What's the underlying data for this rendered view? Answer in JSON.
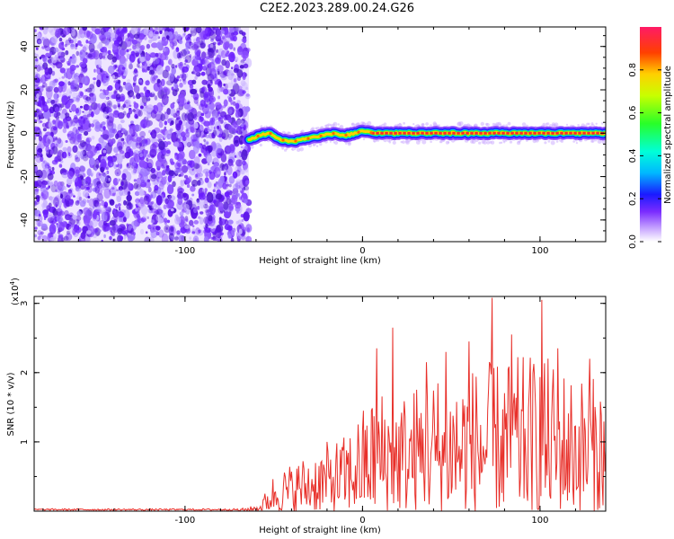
{
  "title": "C2E2.2023.289.00.24.G26",
  "chart_data": [
    {
      "type": "heatmap",
      "xlabel": "Height of straight line (km)",
      "ylabel": "Frequency (Hz)",
      "xlim": [
        -185,
        137
      ],
      "ylim": [
        -50,
        49
      ],
      "xticks": [
        -100,
        0,
        100
      ],
      "yticks": [
        -40,
        -20,
        0,
        20,
        40
      ],
      "noise_region_x": [
        -185,
        -64
      ],
      "signal_track": {
        "x": [
          -64,
          -58,
          -52,
          -46,
          -40,
          -34,
          -28,
          -22,
          -16,
          -10,
          -4,
          0,
          6,
          12,
          20,
          40,
          60,
          80,
          100,
          120,
          137
        ],
        "y": [
          -3,
          -1,
          0,
          -3,
          -4,
          -3,
          -2,
          -1,
          0,
          -1,
          0,
          1,
          0,
          0,
          0,
          0,
          0,
          0,
          0,
          0,
          0
        ]
      },
      "colorbar": {
        "label": "Normalized spectral amplitude",
        "ticks": [
          0.0,
          0.2,
          0.4,
          0.6,
          0.8
        ],
        "range": [
          0,
          1
        ]
      }
    },
    {
      "type": "line",
      "xlabel": "Height of straight line (km)",
      "ylabel": "SNR (10 * v/v)",
      "yscale_label": "(x10",
      "yscale_exp": "4",
      "yscale_close": ")",
      "xlim": [
        -185,
        137
      ],
      "ylim": [
        0,
        3.1
      ],
      "xticks": [
        -100,
        0,
        100
      ],
      "yticks": [
        1,
        2,
        3
      ],
      "color": "#e8302a",
      "envelope": [
        [
          -185,
          0.02
        ],
        [
          -70,
          0.03
        ],
        [
          -58,
          0.1
        ],
        [
          -50,
          0.55
        ],
        [
          -40,
          0.7
        ],
        [
          -30,
          0.85
        ],
        [
          -20,
          1.0
        ],
        [
          -10,
          1.1
        ],
        [
          0,
          1.5
        ],
        [
          10,
          1.8
        ],
        [
          20,
          1.7
        ],
        [
          40,
          2.0
        ],
        [
          60,
          2.1
        ],
        [
          80,
          2.2
        ],
        [
          100,
          2.3
        ],
        [
          120,
          2.0
        ],
        [
          137,
          1.9
        ]
      ],
      "peaks": [
        [
          8,
          2.35
        ],
        [
          17,
          2.65
        ],
        [
          36,
          2.15
        ],
        [
          47,
          2.3
        ],
        [
          60,
          2.45
        ],
        [
          73,
          3.08
        ],
        [
          84,
          2.55
        ],
        [
          101,
          3.05
        ],
        [
          110,
          2.35
        ],
        [
          128,
          2.2
        ]
      ]
    }
  ]
}
